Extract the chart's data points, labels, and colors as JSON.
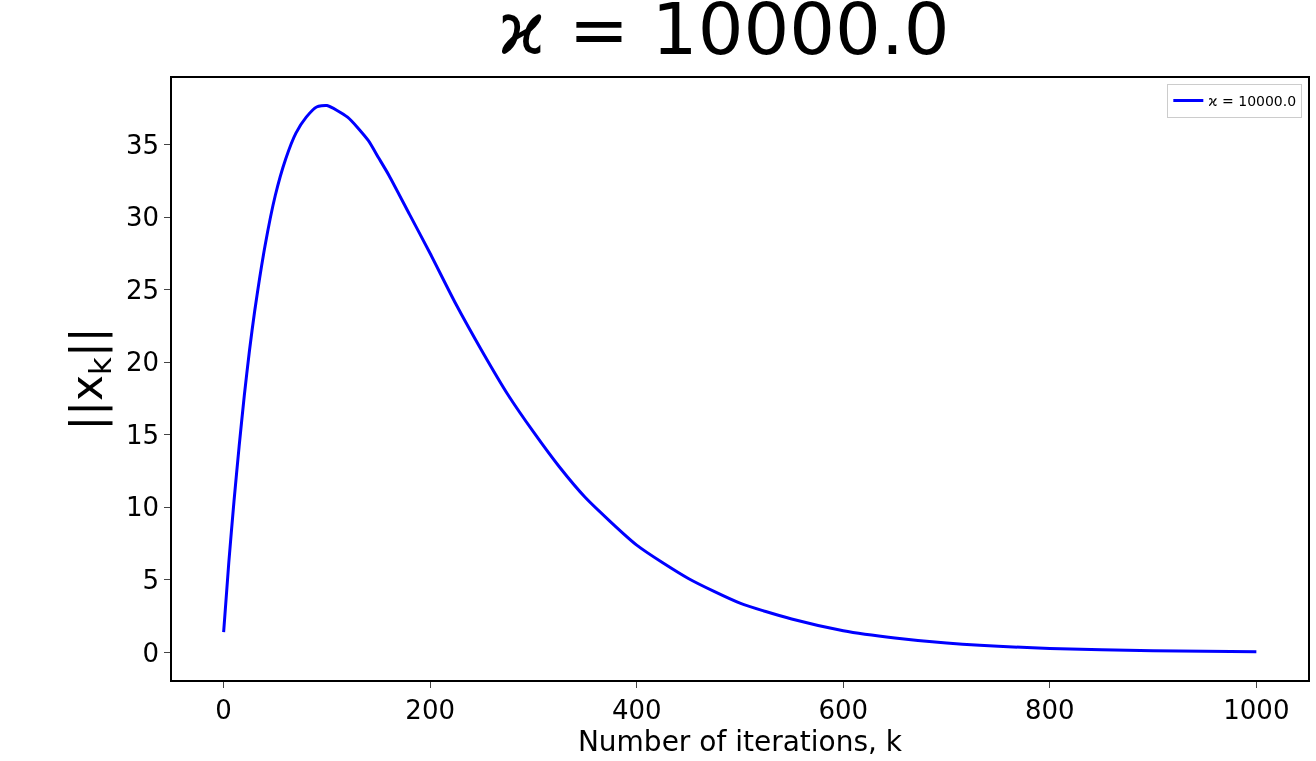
{
  "chart_data": {
    "type": "line",
    "title": "ϰ = 10000.0",
    "xlabel": "Number of iterations, k",
    "ylabel": "||x$_{k}$||",
    "x": [
      0,
      5,
      10,
      15,
      20,
      25,
      30,
      40,
      50,
      60,
      70,
      80,
      90,
      100,
      120,
      140,
      150,
      160,
      180,
      200,
      225,
      250,
      275,
      300,
      325,
      350,
      400,
      450,
      500,
      550,
      600,
      650,
      700,
      800,
      900,
      1000
    ],
    "series": [
      {
        "name": "ϰ = 10000.0",
        "color": "#0000ff",
        "values": [
          1.4,
          6.2,
          10.4,
          14.2,
          17.7,
          20.8,
          23.5,
          28.0,
          31.5,
          34.0,
          35.8,
          36.9,
          37.6,
          37.7,
          36.9,
          35.3,
          34.1,
          32.9,
          30.2,
          27.5,
          24.0,
          20.8,
          17.8,
          15.2,
          12.8,
          10.7,
          7.4,
          5.1,
          3.4,
          2.3,
          1.5,
          1.0,
          0.65,
          0.27,
          0.11,
          0.05
        ]
      }
    ],
    "xlim": [
      -50,
      1050
    ],
    "ylim": [
      -1.9,
      39.6
    ],
    "xticks": [
      0,
      200,
      400,
      600,
      800,
      1000
    ],
    "yticks": [
      0,
      5,
      10,
      15,
      20,
      25,
      30,
      35
    ],
    "legend": "top right",
    "marker": "none",
    "line_style": "solid"
  }
}
